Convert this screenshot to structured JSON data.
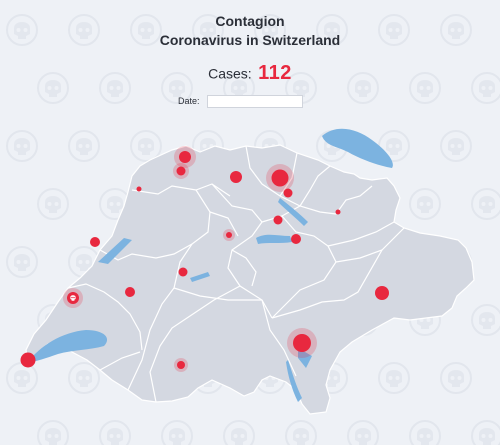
{
  "header": {
    "title": "Contagion",
    "subtitle": "Coronavirus in Switzerland"
  },
  "stats": {
    "cases_label": "Cases:",
    "cases_value": "112"
  },
  "date_filter": {
    "label": "Date:",
    "value": ""
  },
  "map": {
    "country": "Switzerland",
    "colors": {
      "land": "#d4d8e1",
      "border": "#ffffff",
      "lakes": "#7cb3e0",
      "hotspot": "#e8283f",
      "background": "#eef1f6"
    },
    "background_icon": "skull-icon"
  }
}
